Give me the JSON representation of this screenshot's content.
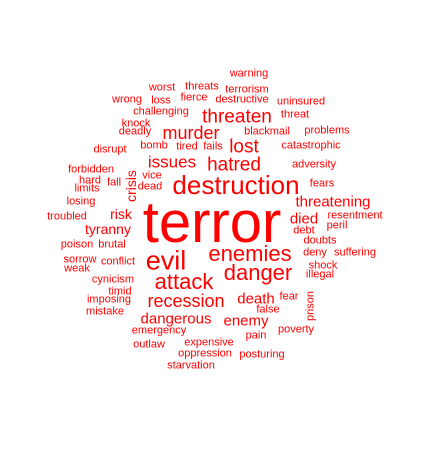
{
  "colors": {
    "text": "#ff0000",
    "background": "#ffffff"
  },
  "words": {
    "terror": "terror",
    "destruction": "destruction",
    "evil": "evil",
    "attack": "attack",
    "danger": "danger",
    "enemies": "enemies",
    "recession": "recession",
    "threaten": "threaten",
    "murder": "murder",
    "hatred": "hatred",
    "lost": "lost",
    "issues": "issues",
    "threatening": "threatening",
    "tyranny": "tyranny",
    "crisis": "crisis",
    "risk": "risk",
    "died": "died",
    "dangerous": "dangerous",
    "death": "death",
    "enemy": "enemy",
    "warning": "warning",
    "worst": "worst",
    "threats": "threats",
    "terrorism": "terrorism",
    "wrong": "wrong",
    "loss": "loss",
    "fierce": "fierce",
    "destructive": "destructive",
    "uninsured": "uninsured",
    "challenging": "challenging",
    "threat": "threat",
    "knock": "knock",
    "deadly": "deadly",
    "blackmail": "blackmail",
    "problems": "problems",
    "bomb": "bomb",
    "tired": "tired",
    "fails": "fails",
    "catastrophic": "catastrophic",
    "disrupt": "disrupt",
    "adversity": "adversity",
    "forbidden": "forbidden",
    "vice": "vice",
    "hard": "hard",
    "fall": "fall",
    "dead": "dead",
    "fears": "fears",
    "limits": "limits",
    "losing": "losing",
    "resentment": "resentment",
    "troubled": "troubled",
    "peril": "peril",
    "debt": "debt",
    "doubts": "doubts",
    "poison": "poison",
    "brutal": "brutal",
    "deny": "deny",
    "suffering": "suffering",
    "sorrow": "sorrow",
    "conflict": "conflict",
    "shock": "shock",
    "weak": "weak",
    "illegal": "illegal",
    "cynicism": "cynicism",
    "timid": "timid",
    "imposing": "imposing",
    "fear": "fear",
    "prison": "prison",
    "mistake": "mistake",
    "false": "false",
    "poverty": "poverty",
    "emergency": "emergency",
    "pain": "pain",
    "outlaw": "outlaw",
    "expensive": "expensive",
    "oppression": "oppression",
    "posturing": "posturing",
    "starvation": "starvation"
  }
}
